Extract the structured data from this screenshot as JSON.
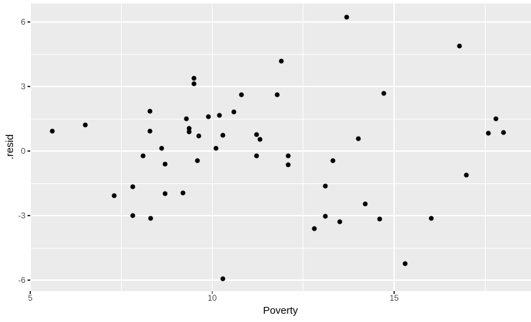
{
  "chart_data": {
    "type": "scatter",
    "title": "",
    "xlabel": "Poverty",
    "ylabel": ".resid",
    "x_ticks": [
      5,
      10,
      15
    ],
    "y_ticks": [
      -6,
      -3,
      0,
      3,
      6
    ],
    "x_minor_ticks": [
      7.5,
      12.5,
      17.5
    ],
    "y_minor_ticks": [
      -4.5,
      -1.5,
      1.5,
      4.5
    ],
    "xlim": [
      4.99,
      18.76
    ],
    "ylim": [
      -6.51,
      6.86
    ],
    "grid": "major-and-minor",
    "legend": "none",
    "points": [
      [
        5.61,
        0.94
      ],
      [
        6.51,
        1.22
      ],
      [
        7.31,
        -2.06
      ],
      [
        7.82,
        -1.67
      ],
      [
        7.81,
        -3.0
      ],
      [
        8.09,
        -0.23
      ],
      [
        8.29,
        1.86
      ],
      [
        8.29,
        0.94
      ],
      [
        8.31,
        -3.14
      ],
      [
        8.61,
        0.14
      ],
      [
        8.71,
        -0.61
      ],
      [
        8.71,
        -1.97
      ],
      [
        9.2,
        -1.94
      ],
      [
        9.29,
        1.51
      ],
      [
        9.5,
        3.37
      ],
      [
        9.5,
        3.14
      ],
      [
        9.36,
        1.04
      ],
      [
        9.37,
        0.89
      ],
      [
        9.59,
        -0.46
      ],
      [
        9.63,
        0.69
      ],
      [
        9.9,
        1.59
      ],
      [
        10.1,
        0.14
      ],
      [
        10.19,
        1.65
      ],
      [
        10.3,
        0.73
      ],
      [
        10.3,
        -5.95
      ],
      [
        10.6,
        1.81
      ],
      [
        10.81,
        2.61
      ],
      [
        11.21,
        0.78
      ],
      [
        11.21,
        -0.23
      ],
      [
        11.31,
        0.55
      ],
      [
        11.78,
        2.61
      ],
      [
        11.89,
        4.18
      ],
      [
        12.09,
        -0.21
      ],
      [
        12.09,
        -0.65
      ],
      [
        12.8,
        -3.62
      ],
      [
        13.1,
        -3.03
      ],
      [
        13.11,
        -1.64
      ],
      [
        13.31,
        -0.45
      ],
      [
        13.5,
        -3.28
      ],
      [
        13.7,
        6.21
      ],
      [
        14.01,
        0.56
      ],
      [
        14.2,
        -2.45
      ],
      [
        14.6,
        -3.17
      ],
      [
        14.71,
        2.69
      ],
      [
        15.3,
        -5.24
      ],
      [
        16.01,
        -3.12
      ],
      [
        16.79,
        4.87
      ],
      [
        16.99,
        -1.12
      ],
      [
        17.59,
        0.83
      ],
      [
        17.79,
        1.49
      ],
      [
        18.01,
        0.87
      ]
    ]
  },
  "style": {
    "background": "#FFFFFF",
    "panel_bg": "#EBEBEB",
    "grid_color": "#FFFFFF",
    "point_color": "#000000",
    "axis_text_color": "#4D4D4D",
    "axis_title_color": "#000000",
    "tick_color": "#333333"
  }
}
